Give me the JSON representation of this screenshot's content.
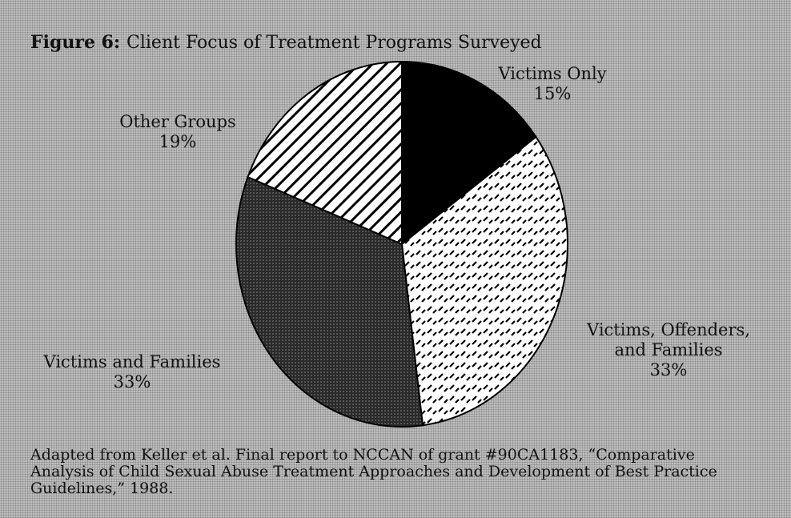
{
  "chart_data": {
    "type": "pie",
    "figure_label": "Figure 6:",
    "title": "Client Focus of Treatment Programs Surveyed",
    "categories": [
      "Victims Only",
      "Victims, Offenders, and Families",
      "Victims and Families",
      "Other Groups"
    ],
    "values": [
      15,
      33,
      33,
      19
    ],
    "value_labels": [
      "15%",
      "33%",
      "33%",
      "19%"
    ],
    "source": "Adapted from Keller et al. Final report to NCCAN of grant #90CA1183, “Comparative Analysis of Child Sexual Abuse Treatment Approaches and Development of Best Practice Guidelines,” 1988."
  }
}
